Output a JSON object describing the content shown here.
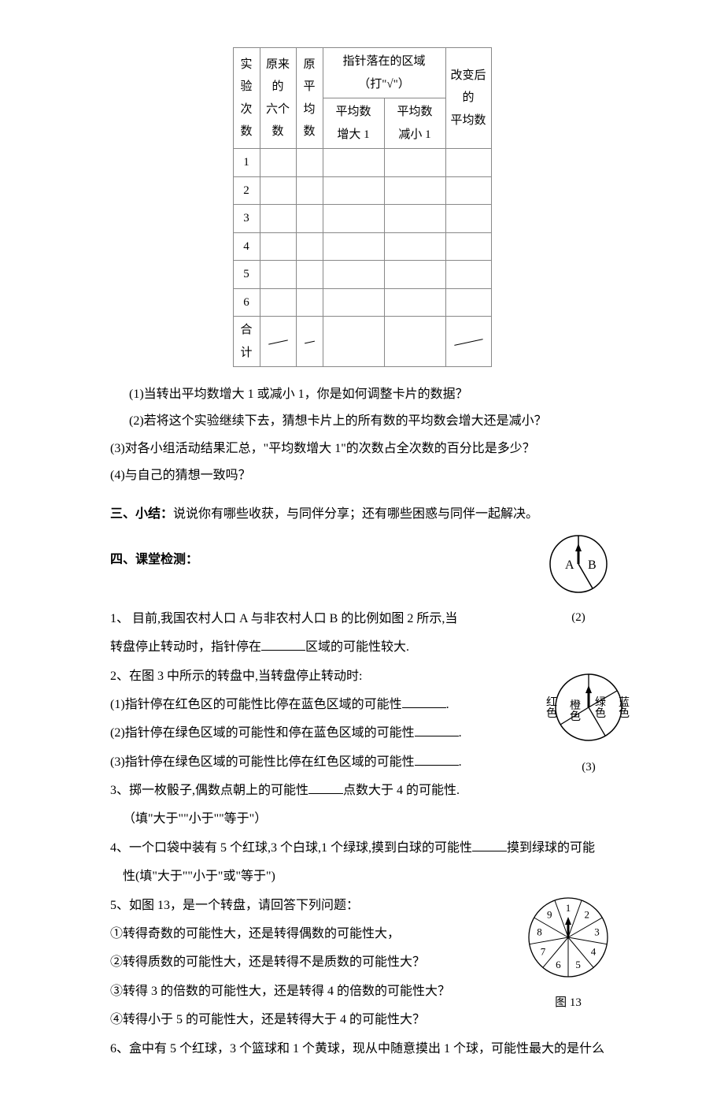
{
  "table": {
    "header": {
      "col_idx_top": "实验",
      "col_idx_bot": "次数",
      "col_six_top": "原来的",
      "col_six_bot": "六个数",
      "col_avg_top": "原平",
      "col_avg_bot": "均数",
      "region_title": "指针落在的区域",
      "region_sub": "（打\"√\"）",
      "inc_top": "平均数",
      "inc_bot": "增大 1",
      "dec_top": "平均数",
      "dec_bot": "减小 1",
      "new_top": "改变后的",
      "new_bot": "平均数"
    },
    "row_labels": [
      "1",
      "2",
      "3",
      "4",
      "5",
      "6",
      "合计"
    ]
  },
  "questions_after_table": {
    "q1": "(1)当转出平均数增大 1 或减小 1，你是如何调整卡片的数据？",
    "q2": "(2)若将这个实验继续下去，猜想卡片上的所有数的平均数会增大还是减小？",
    "q3": "(3)对各小组活动结果汇总，\"平均数增大 1\"的次数占全次数的百分比是多少？",
    "q4": "(4)与自己的猜想一致吗？"
  },
  "section3": {
    "heading": "三、小结：",
    "text": "说说你有哪些收获，与同伴分享；还有哪些困惑与同伴一起解决。"
  },
  "section4": {
    "heading": "四、课堂检测：",
    "q1_a": "1、 目前,我国农村人口 A 与非农村人口 B 的比例如图 2 所示,当",
    "q1_b_prefix": "转盘停止转动时，指针停在",
    "q1_b_suffix": "区域的可能性较大.",
    "q2_intro": "2、在图 3 中所示的转盘中,当转盘停止转动时:",
    "q2_1_prefix": "(1)指针停在红色区的可能性比停在蓝色区域的可能性",
    "q2_1_suffix": ".",
    "q2_2_prefix": "(2)指针停在绿色区域的可能性和停在蓝色区域的可能性",
    "q2_2_suffix": ".",
    "q2_3_prefix": "(3)指针停在绿色区域的可能性比停在红色区域的可能性",
    "q2_3_suffix": ".",
    "q3_prefix": "3、掷一枚骰子,偶数点朝上的可能性",
    "q3_suffix": "点数大于 4 的可能性.",
    "q3_hint": "（填\"大于\"\"小于\"\"等于\"）",
    "q4_prefix": "4、一个口袋中装有 5 个红球,3 个白球,1 个绿球,摸到白球的可能性",
    "q4_suffix": "摸到绿球的可能",
    "q4_hint": "性(填\"大于\"\"小于\"或\"等于\")",
    "q5_intro": "5、如图 13，是一个转盘，请回答下列问题：",
    "q5_1": "①转得奇数的可能性大，还是转得偶数的可能性大，",
    "q5_2": "②转得质数的可能性大，还是转得不是质数的可能性大？",
    "q5_3": "③转得 3 的倍数的可能性大，还是转得 4 的倍数的可能性大？",
    "q5_4": "④转得小于 5 的可能性大，还是转得大于 4 的可能性大？",
    "q6": "6、盒中有 5 个红球，3 个篮球和 1 个黄球，现从中随意摸出 1 个球，可能性最大的是什么"
  },
  "figures": {
    "fig2": {
      "caption": "(2)",
      "labels": {
        "A": "A",
        "B": "B"
      },
      "circle": {
        "r": 36,
        "stroke": "#000",
        "fill": "none",
        "stroke_width": 1.5
      },
      "split_angle_deg": 255,
      "arrow_angle_deg": 90,
      "label_fontsize": 16
    },
    "fig3": {
      "caption": "(3)",
      "labels": {
        "red": "红色",
        "orange": "橙色",
        "green": "绿色",
        "blue": "蓝色"
      },
      "circle": {
        "r": 42,
        "stroke": "#000",
        "fill": "none",
        "stroke_width": 1.5
      },
      "label_fontsize": 14
    },
    "fig13": {
      "caption": "图 13",
      "sector_labels": [
        "1",
        "2",
        "3",
        "4",
        "5",
        "6",
        "7",
        "8",
        "9"
      ],
      "circle": {
        "r": 50,
        "stroke": "#000",
        "fill": "none",
        "stroke_width": 1.3
      },
      "sector_count": 9,
      "label_fontsize": 13
    }
  }
}
